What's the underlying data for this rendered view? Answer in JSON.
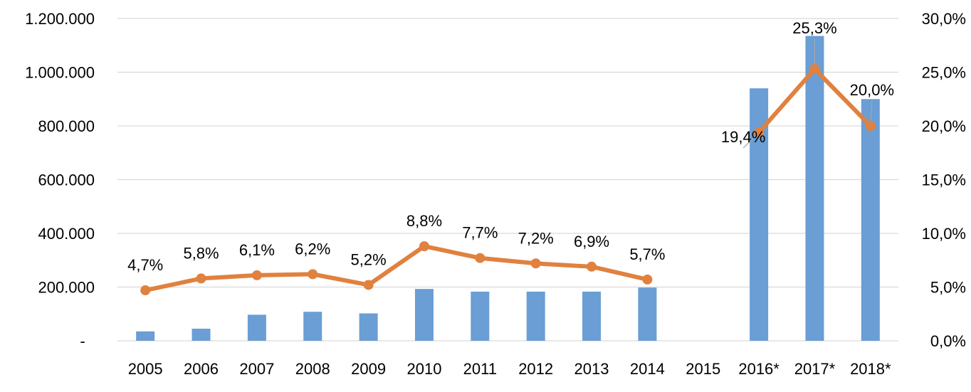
{
  "chart_data": {
    "type": "bar",
    "categories": [
      "2005",
      "2006",
      "2007",
      "2008",
      "2009",
      "2010",
      "2011",
      "2012",
      "2013",
      "2014",
      "2015",
      "2016*",
      "2017*",
      "2018*"
    ],
    "series": [
      {
        "type": "bar",
        "axis": "left",
        "color": "#6a9ed4",
        "values": [
          35000,
          45000,
          97000,
          108000,
          102000,
          193000,
          183000,
          183000,
          183000,
          198000,
          null,
          940000,
          1135000,
          900000
        ]
      },
      {
        "type": "line",
        "axis": "right",
        "color": "#e0813f",
        "values": [
          4.7,
          5.8,
          6.1,
          6.2,
          5.2,
          8.8,
          7.7,
          7.2,
          6.9,
          5.7,
          null,
          19.4,
          25.3,
          20.0
        ],
        "labels": [
          "4,7%",
          "5,8%",
          "6,1%",
          "6,2%",
          "5,2%",
          "8,8%",
          "7,7%",
          "7,2%",
          "6,9%",
          "5,7%",
          "",
          "19,4%",
          "25,3%",
          "20,0%"
        ]
      }
    ],
    "y_left": {
      "ylim": [
        0,
        1200000
      ],
      "tick_labels": [
        "-",
        "200.000",
        "400.000",
        "600.000",
        "800.000",
        "1.000.000",
        "1.200.000"
      ]
    },
    "y_right": {
      "ylim": [
        0,
        30
      ],
      "tick_labels": [
        "0,0%",
        "5,0%",
        "10,0%",
        "15,0%",
        "20,0%",
        "25,0%",
        "30,0%"
      ]
    },
    "grid": true,
    "gridline_color": "#d9d9d9",
    "legend": "none"
  }
}
